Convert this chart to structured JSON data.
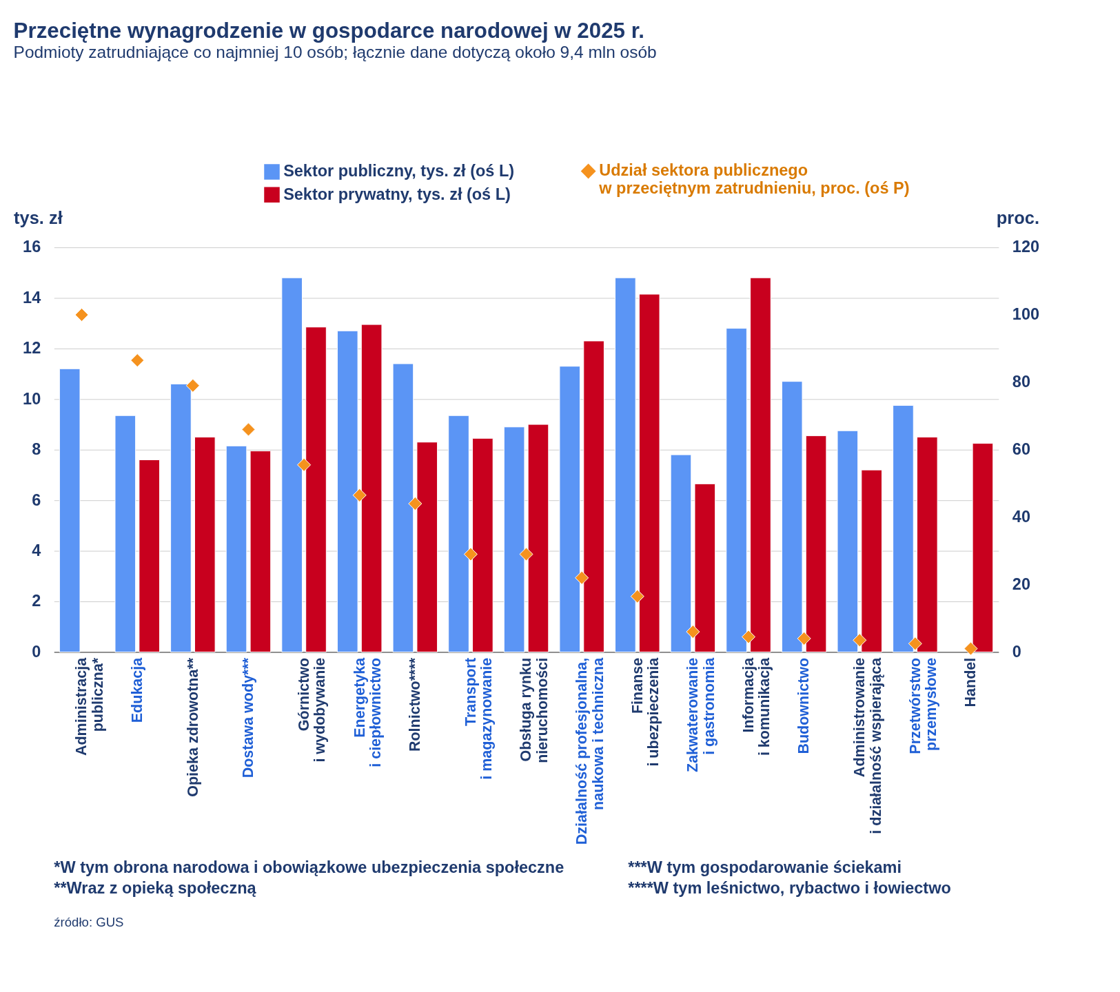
{
  "chart_data": {
    "type": "bar",
    "title": "Przeciętne wynagrodzenie w gospodarce narodowej w 2025 r.",
    "subtitle": "Podmioty zatrudniające co najmniej 10 osób; łącznie dane dotyczą około 9,4 mln osób",
    "ylabel": "tys. zł",
    "y2label": "proc.",
    "categories": [
      "Administracja\npubliczna*",
      "Edukacja",
      "Opieka zdrowotna**",
      "Dostawa wody***",
      "Górnictwo\ni wydobywanie",
      "Energetyka\ni ciepłownictwo",
      "Rolnictwo****",
      "Transport\ni magazynowanie",
      "Obsługa rynku\nnieruchomości",
      "Działalność profesjonalna,\nnaukowa i techniczna",
      "Finanse\ni ubezpieczenia",
      "Zakwaterowanie\ni gastronomia",
      "Informacja\ni komunikacja",
      "Budownictwo",
      "Administrowanie\ni działalność wspierająca",
      "Przetwórstwo\nprzemysłowe",
      "Handel"
    ],
    "series": [
      {
        "name": "Sektor publiczny, tys. zł (oś L)",
        "type": "bar",
        "color": "#5b95f5",
        "values": [
          11.2,
          9.35,
          10.6,
          8.15,
          14.8,
          12.7,
          11.4,
          9.35,
          8.9,
          11.3,
          14.8,
          7.8,
          12.8,
          10.7,
          8.75,
          9.75,
          null
        ]
      },
      {
        "name": "Sektor prywatny, tys. zł (oś L)",
        "type": "bar",
        "color": "#c8001e",
        "values": [
          null,
          7.6,
          8.5,
          7.95,
          12.85,
          12.95,
          8.3,
          8.45,
          9.0,
          12.3,
          14.15,
          6.65,
          14.8,
          8.55,
          7.2,
          8.5,
          8.25
        ]
      },
      {
        "name": "Udział sektora publicznego\nw przeciętnym zatrudnieniu, proc. (oś P)",
        "type": "scatter",
        "axis": "y2",
        "color": "#f5921e",
        "values": [
          100,
          86.5,
          79,
          66,
          55.5,
          46.5,
          44,
          29,
          29,
          22,
          16.5,
          6,
          4.5,
          4,
          3.5,
          2.5,
          1
        ]
      }
    ],
    "ylim": [
      0,
      16
    ],
    "yticks": [
      0,
      2,
      4,
      6,
      8,
      10,
      12,
      14,
      16
    ],
    "y2lim": [
      0,
      120
    ],
    "y2ticks": [
      0,
      20,
      40,
      60,
      80,
      100,
      120
    ],
    "grid": "y",
    "legend": "top",
    "marker": "diamond",
    "annotations": [
      "*W tym obrona narodowa i obowiązkowe ubezpieczenia społeczne",
      "**Wraz z opieką społeczną",
      "***W tym gospodarowanie ściekami",
      "****W tym leśnictwo, rybactwo i łowiectwo",
      "źródło: GUS"
    ]
  }
}
